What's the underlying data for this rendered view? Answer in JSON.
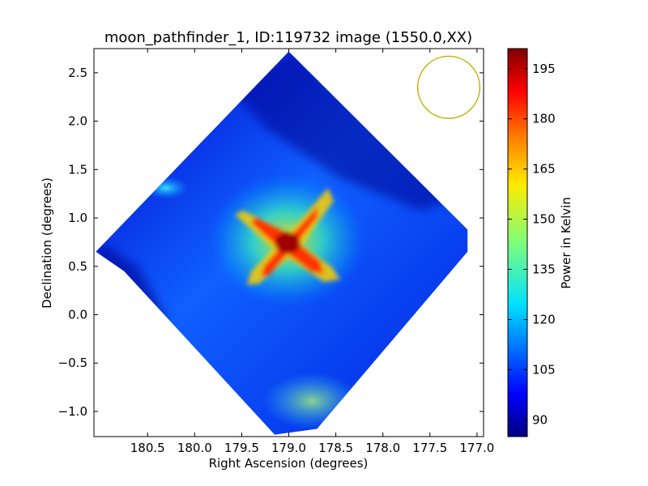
{
  "chart_data": {
    "type": "heatmap",
    "title": "moon_pathfinder_1, ID:119732 image (1550.0,XX)",
    "xlabel": "Right Ascension (degrees)",
    "ylabel": "Declination (degrees)",
    "xlim": [
      181.07,
      176.93
    ],
    "ylim": [
      -1.26,
      2.75
    ],
    "xticks": [
      180.5,
      180.0,
      179.5,
      179.0,
      178.5,
      178.0,
      177.5,
      177.0
    ],
    "xtick_labels": [
      "180.5",
      "180.0",
      "179.5",
      "179.0",
      "178.5",
      "178.0",
      "177.5",
      "177.0"
    ],
    "yticks": [
      -1.0,
      -0.5,
      0.0,
      0.5,
      1.0,
      1.5,
      2.0,
      2.5
    ],
    "ytick_labels": [
      "−1.0",
      "−0.5",
      "0.0",
      "0.5",
      "1.0",
      "1.5",
      "2.0",
      "2.5"
    ],
    "colormap": "jet",
    "colorbar": {
      "label": "Power in Kelvin",
      "range": [
        85,
        201
      ],
      "ticks": [
        90,
        105,
        120,
        135,
        150,
        165,
        180,
        195
      ],
      "tick_labels": [
        "90",
        "105",
        "120",
        "135",
        "150",
        "165",
        "180",
        "195"
      ]
    },
    "footprint_vertices": [
      [
        179.0,
        2.72
      ],
      [
        177.1,
        0.88
      ],
      [
        177.1,
        0.65
      ],
      [
        178.7,
        -1.18
      ],
      [
        179.15,
        -1.24
      ],
      [
        180.75,
        0.45
      ],
      [
        181.05,
        0.65
      ],
      [
        179.0,
        2.72
      ]
    ],
    "sources": [
      {
        "ra": 178.9,
        "dec": 0.75,
        "peak": 200,
        "note": "cross-shaped bright source"
      }
    ],
    "beam_circle": {
      "ra": 177.3,
      "dec": 2.35,
      "radius_deg": 0.33,
      "color": "#c0b000"
    },
    "grid": false,
    "legend": "none"
  }
}
